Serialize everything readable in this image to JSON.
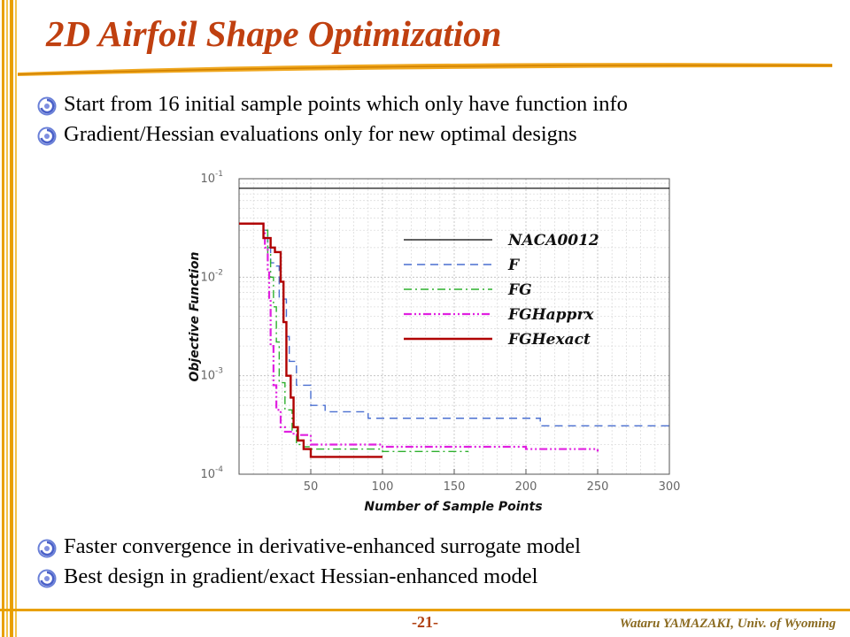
{
  "slide": {
    "title": "2D Airfoil Shape Optimization",
    "page_number": "-21-",
    "author": "Wataru YAMAZAKI, Univ. of Wyoming"
  },
  "bullets_top": [
    "Start from 16 initial sample points which only have function info",
    "Gradient/Hessian evaluations only for new optimal designs"
  ],
  "bullets_bottom": [
    "Faster convergence in derivative-enhanced surrogate model",
    "Best design in gradient/exact Hessian-enhanced model"
  ],
  "colors": {
    "title": "#c04010",
    "accent_orange": "#e8a000",
    "naca": "#000000",
    "F": "#4a6fd0",
    "FG": "#2db02d",
    "FGHapprx": "#e020e0",
    "FGHexact": "#b00000"
  },
  "chart_data": {
    "type": "line",
    "title": "",
    "xlabel": "Number of Sample Points",
    "ylabel": "Objective Function",
    "xlim": [
      0,
      300
    ],
    "ylim": [
      0.0001,
      0.1
    ],
    "yscale": "log",
    "grid": true,
    "legend_position": "upper-right",
    "x_ticks": [
      "50",
      "100",
      "150",
      "200",
      "250",
      "300"
    ],
    "y_ticks": [
      {
        "base": "10",
        "exp": "-1"
      },
      {
        "base": "10",
        "exp": "-2"
      },
      {
        "base": "10",
        "exp": "-3"
      },
      {
        "base": "10",
        "exp": "-4"
      }
    ],
    "series": [
      {
        "name": "NACA0012",
        "style": "solid",
        "x": [
          0,
          300
        ],
        "y": [
          0.08,
          0.08
        ]
      },
      {
        "name": "F",
        "style": "dashed",
        "x": [
          0,
          16,
          17,
          20,
          22,
          26,
          28,
          33,
          35,
          40,
          50,
          60,
          90,
          140,
          210,
          220,
          270,
          300
        ],
        "y": [
          0.035,
          0.035,
          0.03,
          0.02,
          0.014,
          0.013,
          0.006,
          0.0025,
          0.0014,
          0.0008,
          0.0005,
          0.00043,
          0.00037,
          0.00037,
          0.00031,
          0.00031,
          0.00031,
          0.0003
        ]
      },
      {
        "name": "FG",
        "style": "dashdot",
        "x": [
          0,
          16,
          17,
          20,
          22,
          24,
          26,
          28,
          32,
          37,
          40,
          45,
          50,
          100,
          160
        ],
        "y": [
          0.035,
          0.035,
          0.03,
          0.017,
          0.01,
          0.005,
          0.0022,
          0.00085,
          0.00045,
          0.00028,
          0.0002,
          0.00019,
          0.00018,
          0.00017,
          0.00017
        ]
      },
      {
        "name": "FGHapprx",
        "style": "dashdotdot",
        "x": [
          0,
          16,
          17,
          18,
          20,
          21,
          22,
          24,
          26,
          29,
          32,
          38,
          50,
          100,
          150,
          200,
          250
        ],
        "y": [
          0.035,
          0.035,
          0.03,
          0.02,
          0.012,
          0.006,
          0.002,
          0.0008,
          0.00045,
          0.0003,
          0.00027,
          0.00025,
          0.0002,
          0.00019,
          0.00019,
          0.00018,
          0.00017
        ]
      },
      {
        "name": "FGHexact",
        "style": "solid-thick",
        "x": [
          0,
          16,
          17,
          22,
          25,
          29,
          31,
          33,
          36,
          38,
          41,
          45,
          50,
          100
        ],
        "y": [
          0.035,
          0.035,
          0.025,
          0.02,
          0.018,
          0.009,
          0.0035,
          0.001,
          0.0006,
          0.0003,
          0.00022,
          0.00018,
          0.00015,
          0.00015
        ]
      }
    ]
  }
}
